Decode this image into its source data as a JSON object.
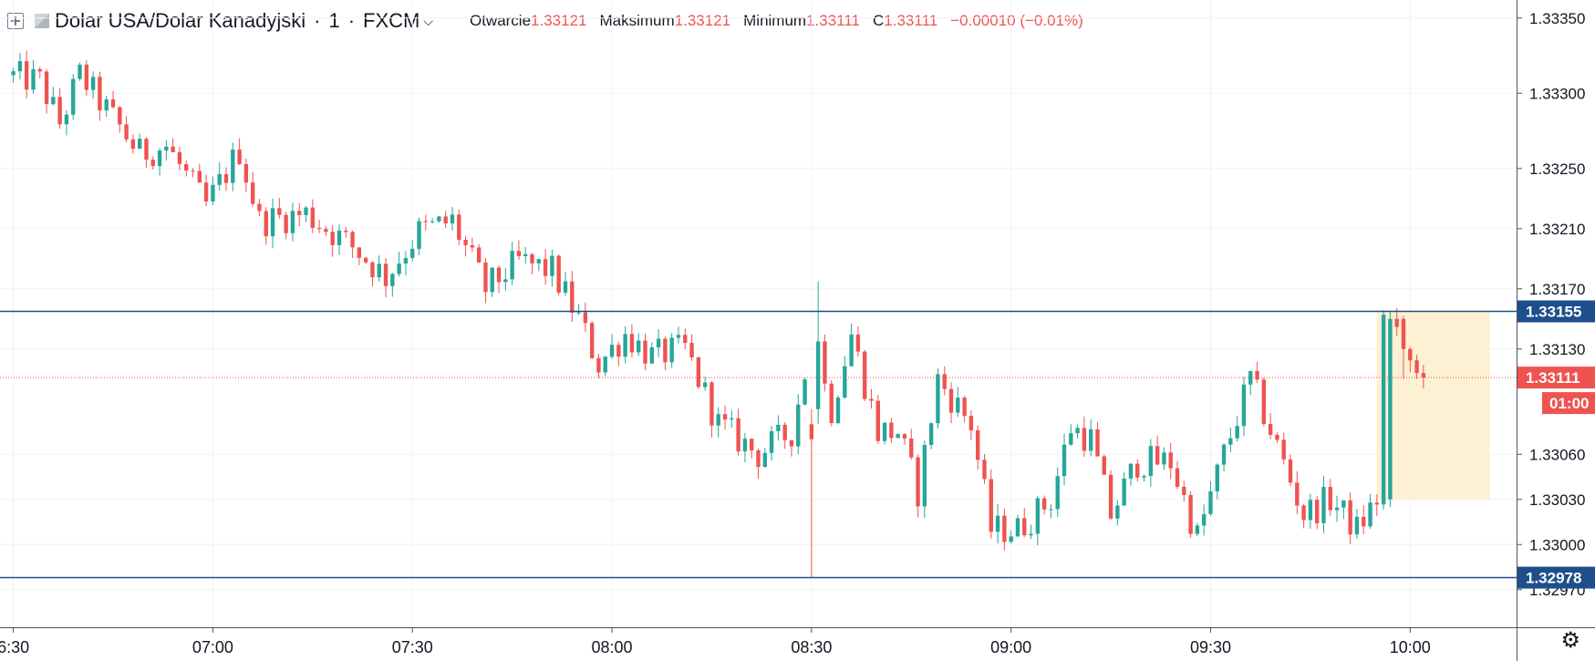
{
  "header": {
    "symbol": "Dolar USA/Dolar Kanadyjski",
    "interval": "1",
    "exchange": "FXCM",
    "open_label": "Otwarcie",
    "open_value": "1.33121",
    "high_label": "Maksimum",
    "high_value": "1.33121",
    "low_label": "Minimum",
    "low_value": "1.33111",
    "close_label": "C",
    "close_value": "1.33111",
    "change": "−0.00010 (−0.01%)"
  },
  "chart_data": {
    "type": "candlestick",
    "symbol": "USDCAD",
    "timeframe_minutes": 1,
    "x_tick_labels": [
      "6:30",
      "07:00",
      "07:30",
      "08:00",
      "08:30",
      "09:00",
      "09:30",
      "10:00"
    ],
    "y_tick_labels": [
      "1.33350",
      "1.33300",
      "1.33250",
      "1.33210",
      "1.33170",
      "1.33130",
      "1.33060",
      "1.33030",
      "1.33000",
      "1.32970"
    ],
    "horizontal_lines": [
      {
        "price": 1.33155,
        "label": "1.33155",
        "color": "#1e4f8c"
      },
      {
        "price": 1.32978,
        "label": "1.32978",
        "color": "#1e4f8c"
      }
    ],
    "last_price": {
      "price": 1.33111,
      "label": "1.33111",
      "countdown": "01:00",
      "color": "#ef5350"
    },
    "highlight_box": {
      "t_start": 205,
      "t_end": 222,
      "price_top": 1.33155,
      "price_bottom": 1.3303,
      "color": "#fdf1d3"
    },
    "x_range": [
      -2,
      226
    ],
    "y_range": [
      1.32945,
      1.33362
    ],
    "up_color": "#26a69a",
    "down_color": "#ef5350",
    "anchors": [
      {
        "t": 0,
        "p": 1.33312
      },
      {
        "t": 5,
        "p": 1.33308
      },
      {
        "t": 8,
        "p": 1.3328
      },
      {
        "t": 11,
        "p": 1.33312
      },
      {
        "t": 20,
        "p": 1.3326
      },
      {
        "t": 24,
        "p": 1.33265
      },
      {
        "t": 30,
        "p": 1.33225
      },
      {
        "t": 35,
        "p": 1.33262
      },
      {
        "t": 38,
        "p": 1.33215
      },
      {
        "t": 45,
        "p": 1.3322
      },
      {
        "t": 52,
        "p": 1.33198
      },
      {
        "t": 57,
        "p": 1.33178
      },
      {
        "t": 62,
        "p": 1.33208
      },
      {
        "t": 67,
        "p": 1.33215
      },
      {
        "t": 72,
        "p": 1.3317
      },
      {
        "t": 77,
        "p": 1.33188
      },
      {
        "t": 82,
        "p": 1.33182
      },
      {
        "t": 86,
        "p": 1.3315
      },
      {
        "t": 89,
        "p": 1.3312
      },
      {
        "t": 93,
        "p": 1.3314
      },
      {
        "t": 97,
        "p": 1.33125
      },
      {
        "t": 102,
        "p": 1.3313
      },
      {
        "t": 107,
        "p": 1.3308
      },
      {
        "t": 113,
        "p": 1.3306
      },
      {
        "t": 118,
        "p": 1.33075
      },
      {
        "t": 121,
        "p": 1.33135
      },
      {
        "t": 124,
        "p": 1.3309
      },
      {
        "t": 127,
        "p": 1.3314
      },
      {
        "t": 131,
        "p": 1.33075
      },
      {
        "t": 134,
        "p": 1.33075
      },
      {
        "t": 137,
        "p": 1.33035
      },
      {
        "t": 140,
        "p": 1.3311
      },
      {
        "t": 145,
        "p": 1.3308
      },
      {
        "t": 148,
        "p": 1.3301
      },
      {
        "t": 152,
        "p": 1.3301
      },
      {
        "t": 157,
        "p": 1.3303
      },
      {
        "t": 160,
        "p": 1.33078
      },
      {
        "t": 163,
        "p": 1.3307
      },
      {
        "t": 166,
        "p": 1.3302
      },
      {
        "t": 170,
        "p": 1.33055
      },
      {
        "t": 175,
        "p": 1.33055
      },
      {
        "t": 179,
        "p": 1.33005
      },
      {
        "t": 183,
        "p": 1.3306
      },
      {
        "t": 187,
        "p": 1.3311
      },
      {
        "t": 191,
        "p": 1.33065
      },
      {
        "t": 195,
        "p": 1.3302
      },
      {
        "t": 199,
        "p": 1.3303
      },
      {
        "t": 203,
        "p": 1.3301
      },
      {
        "t": 206,
        "p": 1.3303
      },
      {
        "t": 207,
        "p": 1.3315
      },
      {
        "t": 211,
        "p": 1.33122
      },
      {
        "t": 212,
        "p": 1.33111
      }
    ],
    "events": [
      {
        "t": 121,
        "o": 1.3309,
        "h": 1.33175,
        "l": 1.3308,
        "c": 1.33135
      },
      {
        "t": 120,
        "o": 1.3308,
        "h": 1.3309,
        "l": 1.32978,
        "c": 1.3307
      },
      {
        "t": 207,
        "o": 1.3303,
        "h": 1.33155,
        "l": 1.33025,
        "c": 1.3315
      },
      {
        "t": 209,
        "o": 1.3315,
        "h": 1.33152,
        "l": 1.3311,
        "c": 1.3313
      }
    ]
  }
}
